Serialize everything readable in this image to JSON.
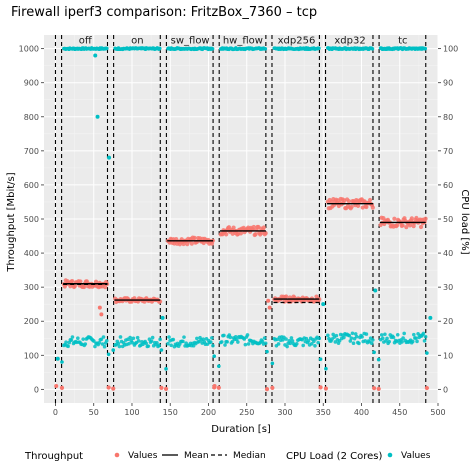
{
  "chart_data": {
    "type": "scatter",
    "title": "Firewall iperf3 comparison: FritzBox_7360 – tcp",
    "xlabel": "Duration [s]",
    "ylabel_left": "Throughput [Mbit/s]",
    "ylabel_right": "CPU load [%]",
    "xlim": [
      -15,
      500
    ],
    "ylim": [
      -40,
      1040
    ],
    "x_ticks": [
      0,
      50,
      100,
      150,
      200,
      250,
      300,
      350,
      400,
      450,
      500
    ],
    "y_ticks": [
      0,
      100,
      200,
      300,
      400,
      500,
      600,
      700,
      800,
      900,
      1000
    ],
    "y2_ticks": [
      0,
      10,
      20,
      30,
      40,
      50,
      60,
      70,
      80,
      90,
      100
    ],
    "grid": true,
    "legend_position": "bottom",
    "segments": [
      {
        "label": "off",
        "start": 10,
        "end": 68,
        "throughput_mean": 310,
        "throughput_median": 308,
        "throughput_spread": 10,
        "cpu_level": 100,
        "cpu_values": 14
      },
      {
        "label": "on",
        "start": 77,
        "end": 137,
        "throughput_mean": 262,
        "throughput_median": 262,
        "throughput_spread": 6,
        "cpu_level": 100,
        "cpu_values": 14
      },
      {
        "label": "sw_flow",
        "start": 146,
        "end": 206,
        "throughput_mean": 436,
        "throughput_median": 436,
        "throughput_spread": 10,
        "cpu_level": 100,
        "cpu_values": 14
      },
      {
        "label": "hw_flow",
        "start": 215,
        "end": 275,
        "throughput_mean": 465,
        "throughput_median": 465,
        "throughput_spread": 12,
        "cpu_level": 100,
        "cpu_values": 14.5
      },
      {
        "label": "xdp256",
        "start": 285,
        "end": 345,
        "throughput_mean": 265,
        "throughput_median": 255,
        "throughput_spread": 8,
        "cpu_level": 100,
        "cpu_values": 14
      },
      {
        "label": "xdp32",
        "start": 355,
        "end": 415,
        "throughput_mean": 545,
        "throughput_median": 545,
        "throughput_spread": 14,
        "cpu_level": 100,
        "cpu_values": 15
      },
      {
        "label": "tc",
        "start": 424,
        "end": 484,
        "throughput_mean": 490,
        "throughput_median": 490,
        "throughput_spread": 14,
        "cpu_level": 100,
        "cpu_values": 15
      }
    ],
    "dashed_boundaries": [
      0,
      8,
      68,
      76,
      137,
      145,
      206,
      214,
      275,
      283,
      345,
      353,
      415,
      423,
      484
    ],
    "legend": {
      "throughput_title": "Throughput",
      "values_label": "Values",
      "mean_label": "Mean",
      "median_label": "Median",
      "cpu_title": "CPU Load (2 Cores)",
      "cpu_values_label": "Values"
    },
    "colors": {
      "throughput": "#F8766D",
      "cpu": "#00BFC4",
      "panel": "#EBEBEB",
      "grid_major": "#FFFFFF",
      "grid_minor": "#F5F5F5"
    }
  }
}
